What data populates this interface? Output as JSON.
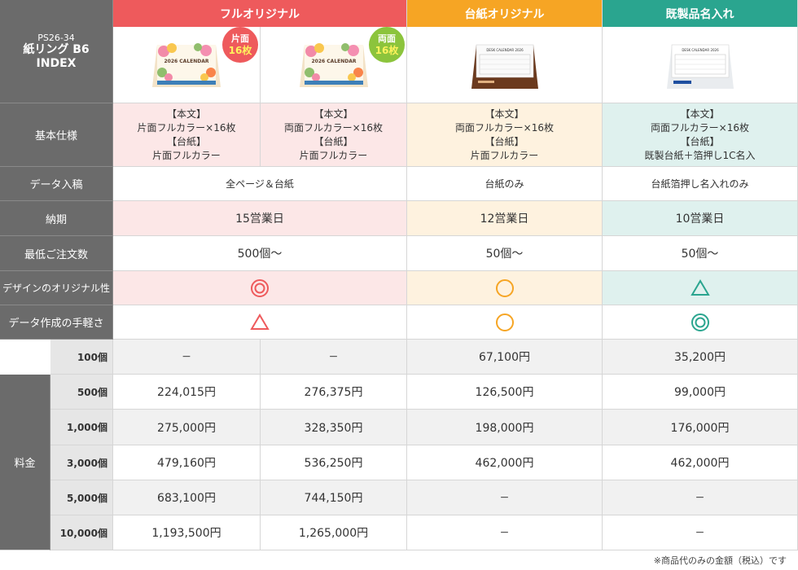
{
  "corner": {
    "code": "PS26-34",
    "line1": "紙リング B6",
    "line2": "INDEX"
  },
  "headers": {
    "full": "フルオリジナル",
    "daishi": "台紙オリジナル",
    "kisei": "既製品名入れ"
  },
  "badges": {
    "kata": {
      "top": "片面",
      "num": "16枚"
    },
    "ryo": {
      "top": "両面",
      "num": "16枚"
    }
  },
  "product_images": {
    "calendar_label": "2026 CALENDAR",
    "desk_label": "DESK CALENDAR 2026"
  },
  "labels": {
    "spec": "基本仕様",
    "data_in": "データ入稿",
    "lead": "納期",
    "min": "最低ご注文数",
    "orig": "デザインのオリジナル性",
    "ease": "データ作成の手軽さ",
    "price": "料金"
  },
  "spec": {
    "honbun": "【本文】",
    "daishi": "【台紙】",
    "c1": {
      "body": "片面フルカラー×16枚",
      "base": "片面フルカラー"
    },
    "c2": {
      "body": "両面フルカラー×16枚",
      "base": "片面フルカラー"
    },
    "c3": {
      "body": "両面フルカラー×16枚",
      "base": "片面フルカラー"
    },
    "c4": {
      "body": "両面フルカラー×16枚",
      "base": "既製台紙＋箔押し1C名入"
    }
  },
  "data_in": {
    "full": "全ページ＆台紙",
    "daishi": "台紙のみ",
    "kisei": "台紙箔押し名入れのみ"
  },
  "lead": {
    "full": "15営業日",
    "daishi": "12営業日",
    "kisei": "10営業日"
  },
  "min": {
    "full": "500個〜",
    "daishi": "50個〜",
    "kisei": "50個〜"
  },
  "ratings": {
    "orig": {
      "full": "double-circle",
      "daishi": "circle",
      "kisei": "triangle"
    },
    "ease": {
      "full": "triangle",
      "daishi": "circle",
      "kisei": "double-circle"
    }
  },
  "price_rows": [
    {
      "qty": "100個",
      "c1": "−",
      "c2": "−",
      "c3": "67,100円",
      "c4": "35,200円"
    },
    {
      "qty": "500個",
      "c1": "224,015円",
      "c2": "276,375円",
      "c3": "126,500円",
      "c4": "99,000円"
    },
    {
      "qty": "1,000個",
      "c1": "275,000円",
      "c2": "328,350円",
      "c3": "198,000円",
      "c4": "176,000円"
    },
    {
      "qty": "3,000個",
      "c1": "479,160円",
      "c2": "536,250円",
      "c3": "462,000円",
      "c4": "462,000円"
    },
    {
      "qty": "5,000個",
      "c1": "683,100円",
      "c2": "744,150円",
      "c3": "−",
      "c4": "−"
    },
    {
      "qty": "10,000個",
      "c1": "1,193,500円",
      "c2": "1,265,000円",
      "c3": "−",
      "c4": "−"
    }
  ],
  "footnote": "※商品代のみの金額（税込）です",
  "colors": {
    "red": "#ee5a5c",
    "orange": "#f6a524",
    "teal": "#2aa58f",
    "green_badge": "#8cc43c"
  }
}
